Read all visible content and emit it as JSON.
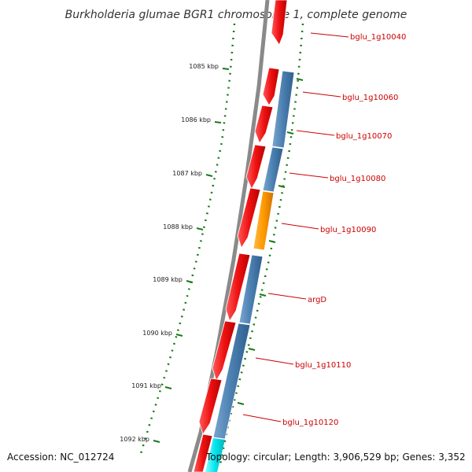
{
  "title": "Burkholderia glumae BGR1 chromosome 1, complete genome",
  "footer": {
    "accession": "Accession: NC_012724",
    "topology": "Topology: circular; Length: 3,906,529 bp; Genes: 3,352"
  },
  "colors": {
    "backbone": "#888888",
    "kbp_tick": "#1a7a1a",
    "forward_gene": "#ee1111",
    "reverse_gene": "#4a7fb0",
    "orange_gene": "#ff9900",
    "cyan_gene": "#00e5ee",
    "label": "#cc0000"
  },
  "chart_data": {
    "type": "genome-map",
    "kbp_labels": [
      "1085 kbp",
      "1086 kbp",
      "1087 kbp",
      "1088 kbp",
      "1089 kbp",
      "1090 kbp",
      "1091 kbp",
      "1092 kbp"
    ],
    "gene_labels": [
      "bglu_1g10040",
      "bglu_1g10060",
      "bglu_1g10070",
      "bglu_1g10080",
      "bglu_1g10090",
      "argD",
      "bglu_1g10110",
      "bglu_1g10120"
    ]
  }
}
